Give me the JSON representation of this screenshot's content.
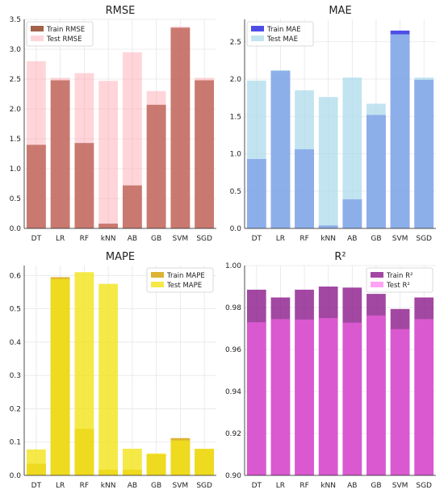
{
  "chart_data": [
    {
      "type": "bar",
      "title": "RMSE",
      "categories": [
        "DT",
        "LR",
        "RF",
        "kNN",
        "AB",
        "GB",
        "SVM",
        "SGD"
      ],
      "ylim": [
        0,
        3.5
      ],
      "yticks": [
        "0.0",
        "0.5",
        "1.0",
        "1.5",
        "2.0",
        "2.5",
        "3.0",
        "3.5"
      ],
      "grid": true,
      "legend_position": "top-left",
      "series": [
        {
          "name": "Train RMSE",
          "color": "#8b3a1a",
          "opacity": 0.8,
          "values": [
            1.4,
            2.48,
            1.43,
            0.08,
            0.72,
            2.07,
            3.36,
            2.48
          ]
        },
        {
          "name": "Test RMSE",
          "color": "#ff9aa8",
          "opacity": 0.42,
          "values": [
            2.8,
            2.52,
            2.6,
            2.47,
            2.95,
            2.3,
            3.38,
            2.52
          ]
        }
      ]
    },
    {
      "type": "bar",
      "title": "MAE",
      "categories": [
        "DT",
        "LR",
        "RF",
        "kNN",
        "AB",
        "GB",
        "SVM",
        "SGD"
      ],
      "ylim": [
        0,
        2.8
      ],
      "yticks": [
        "0.0",
        "0.5",
        "1.0",
        "1.5",
        "2.0",
        "2.5"
      ],
      "grid": true,
      "legend_position": "top-left",
      "series": [
        {
          "name": "Train MAE",
          "color": "#2020e0",
          "opacity": 0.8,
          "values": [
            0.93,
            2.11,
            1.06,
            0.04,
            0.39,
            1.52,
            2.65,
            1.99
          ]
        },
        {
          "name": "Test MAE",
          "color": "#a8d8ea",
          "opacity": 0.7,
          "values": [
            1.98,
            2.12,
            1.85,
            1.76,
            2.02,
            1.67,
            2.6,
            2.02
          ]
        }
      ]
    },
    {
      "type": "bar",
      "title": "MAPE",
      "categories": [
        "DT",
        "LR",
        "RF",
        "kNN",
        "AB",
        "GB",
        "SVM",
        "SGD"
      ],
      "ylim": [
        0,
        0.63
      ],
      "yticks": [
        "0.0",
        "0.1",
        "0.2",
        "0.3",
        "0.4",
        "0.5",
        "0.6"
      ],
      "grid": true,
      "legend_position": "top-right",
      "series": [
        {
          "name": "Train MAPE",
          "color": "#d4a000",
          "opacity": 0.8,
          "values": [
            0.035,
            0.595,
            0.14,
            0.017,
            0.017,
            0.063,
            0.112,
            0.079
          ]
        },
        {
          "name": "Test MAPE",
          "color": "#f2e31a",
          "opacity": 0.8,
          "values": [
            0.078,
            0.59,
            0.61,
            0.575,
            0.08,
            0.066,
            0.105,
            0.08
          ]
        }
      ]
    },
    {
      "type": "bar",
      "title": "R²",
      "categories": [
        "DT",
        "LR",
        "RF",
        "kNN",
        "AB",
        "GB",
        "SVM",
        "SGD"
      ],
      "ylim": [
        0.9,
        1.0
      ],
      "yticks": [
        "0.90",
        "0.92",
        "0.94",
        "0.96",
        "0.98",
        "1.00"
      ],
      "grid": true,
      "legend_position": "top-right",
      "series": [
        {
          "name": "Train R²",
          "color": "#8b1a8b",
          "opacity": 0.8,
          "values": [
            0.9885,
            0.9848,
            0.9885,
            0.99,
            0.9895,
            0.9865,
            0.9793,
            0.9848
          ]
        },
        {
          "name": "Test R²",
          "color": "#ff66ee",
          "opacity": 0.6,
          "values": [
            0.973,
            0.9745,
            0.9743,
            0.975,
            0.9728,
            0.9762,
            0.9697,
            0.9745
          ]
        }
      ]
    }
  ]
}
